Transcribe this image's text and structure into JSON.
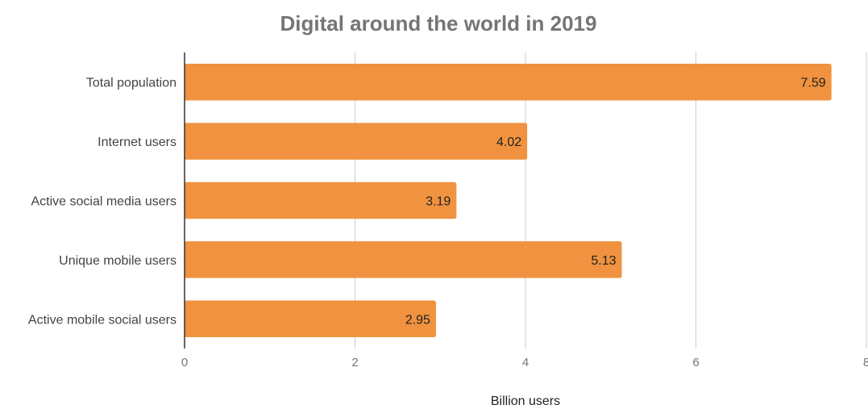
{
  "chart_data": {
    "type": "bar",
    "orientation": "horizontal",
    "title": "Digital around the world in 2019",
    "xlabel": "Billion users",
    "ylabel": "",
    "categories": [
      "Total population",
      "Internet users",
      "Active social media users",
      "Unique mobile users",
      "Active mobile social users"
    ],
    "values": [
      7.59,
      4.02,
      3.19,
      5.13,
      2.95
    ],
    "data_labels": [
      "7.59",
      "4.02",
      "3.19",
      "5.13",
      "2.95"
    ],
    "xlim": [
      0,
      8
    ],
    "x_ticks": [
      "0",
      "2",
      "4",
      "6",
      "8"
    ],
    "grid": true,
    "legend": "none",
    "colors": {
      "bar": "#f0923f",
      "grid": "#cccccc",
      "title": "#757575"
    }
  }
}
